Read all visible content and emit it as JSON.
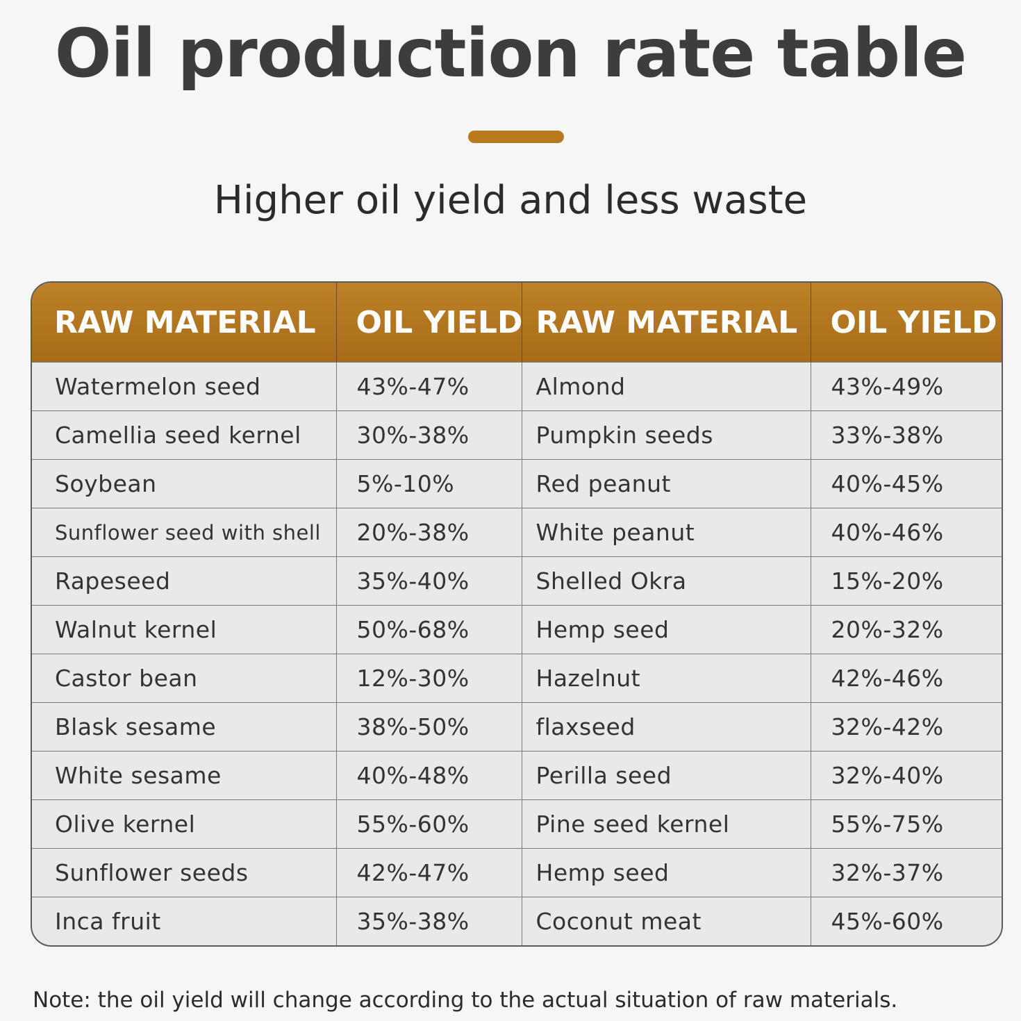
{
  "title": "Oil production rate table",
  "subtitle": "Higher oil yield and less waste",
  "colors": {
    "accent": "#b97a1f",
    "header_bg": "#ae711c",
    "row_bg": "#e9e9e9"
  },
  "table": {
    "headers": [
      "RAW MATERIAL",
      "OIL YIELD",
      "RAW MATERIAL",
      "OIL YIELD"
    ],
    "rows": [
      [
        "Watermelon seed",
        "43%-47%",
        "Almond",
        "43%-49%"
      ],
      [
        "Camellia seed kernel",
        "30%-38%",
        "Pumpkin seeds",
        "33%-38%"
      ],
      [
        "Soybean",
        "5%-10%",
        "Red peanut",
        "40%-45%"
      ],
      [
        "Sunflower seed with shell",
        "20%-38%",
        "White peanut",
        "40%-46%"
      ],
      [
        "Rapeseed",
        "35%-40%",
        "Shelled Okra",
        "15%-20%"
      ],
      [
        "Walnut kernel",
        "50%-68%",
        "Hemp seed",
        "20%-32%"
      ],
      [
        "Castor bean",
        "12%-30%",
        "Hazelnut",
        "42%-46%"
      ],
      [
        "Blask sesame",
        "38%-50%",
        "flaxseed",
        "32%-42%"
      ],
      [
        "White sesame",
        "40%-48%",
        "Perilla seed",
        "32%-40%"
      ],
      [
        "Olive kernel",
        "55%-60%",
        "Pine seed kernel",
        "55%-75%"
      ],
      [
        "Sunflower seeds",
        "42%-47%",
        "Hemp seed",
        "32%-37%"
      ],
      [
        "Inca fruit",
        "35%-38%",
        "Coconut meat",
        "45%-60%"
      ]
    ]
  },
  "note": "Note: the oil yield will change according to the actual situation of raw materials."
}
